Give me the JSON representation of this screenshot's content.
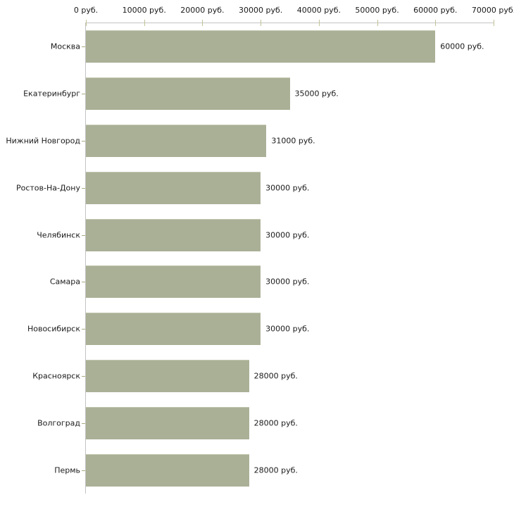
{
  "chart_data": {
    "type": "bar",
    "orientation": "horizontal",
    "title": "",
    "xlabel": "",
    "ylabel": "",
    "unit": "руб.",
    "categories": [
      "Москва",
      "Екатеринбург",
      "Нижний Новгород",
      "Ростов-На-Дону",
      "Челябинск",
      "Самара",
      "Новосибирск",
      "Красноярск",
      "Волгоград",
      "Пермь"
    ],
    "values": [
      60000,
      35000,
      31000,
      30000,
      30000,
      30000,
      30000,
      28000,
      28000,
      28000
    ],
    "value_labels": [
      "60000 руб.",
      "35000 руб.",
      "31000 руб.",
      "30000 руб.",
      "30000 руб.",
      "30000 руб.",
      "30000 руб.",
      "28000 руб.",
      "28000 руб.",
      "28000 руб."
    ],
    "xlim": [
      0,
      70000
    ],
    "x_ticks": [
      0,
      10000,
      20000,
      30000,
      40000,
      50000,
      60000,
      70000
    ],
    "x_tick_labels": [
      "0 руб.",
      "10000 руб.",
      "20000 руб.",
      "30000 руб.",
      "40000 руб.",
      "50000 руб.",
      "60000 руб.",
      "70000 руб."
    ],
    "grid": "off",
    "legend": "none",
    "colors": {
      "bar": "#aab096",
      "bar_top_highlight": "#c2c7ae",
      "axis_line": "#c3c3c3",
      "axis_tick": "#c2c398",
      "category_tick": "#a9aa80",
      "text": "#1a1a1a",
      "background": "#ffffff"
    }
  }
}
